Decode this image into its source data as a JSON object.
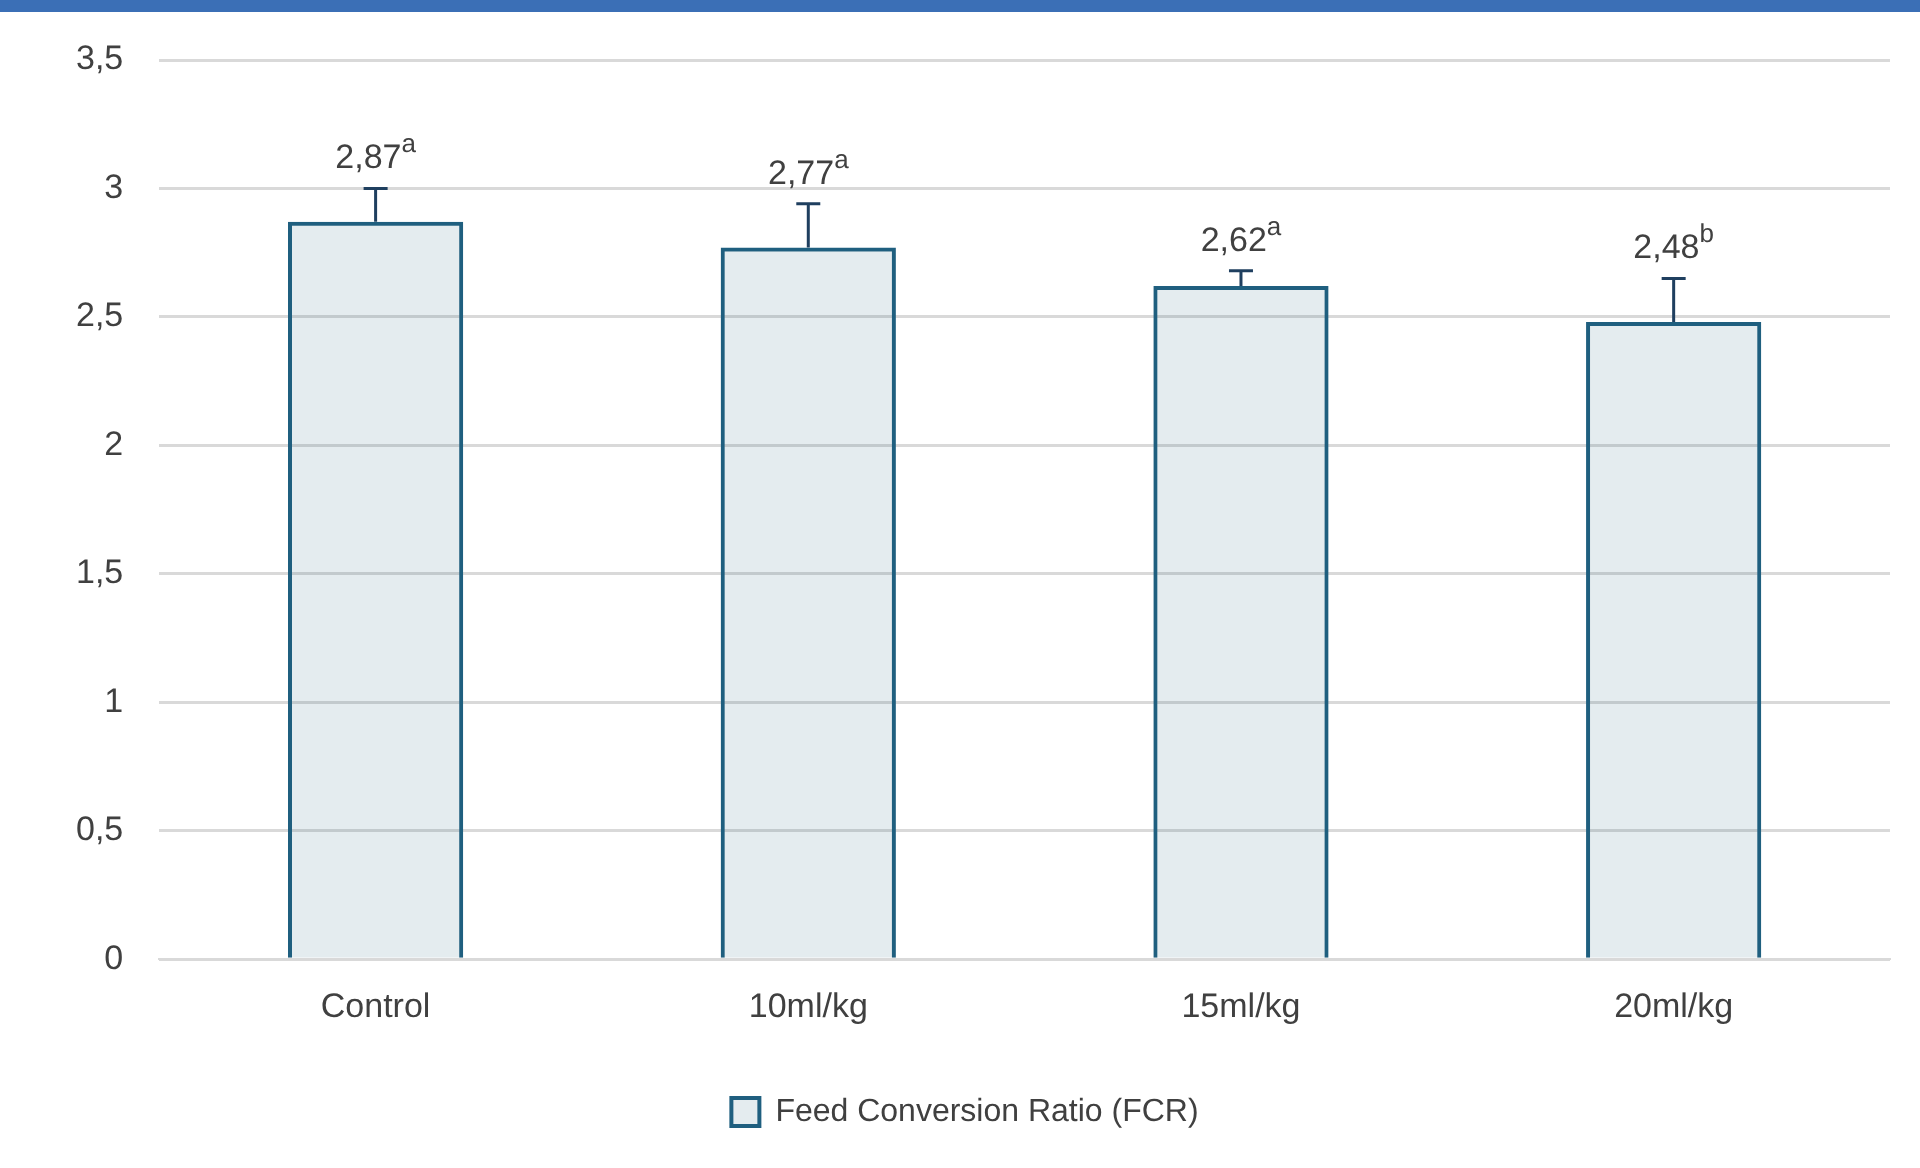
{
  "chart_data": {
    "type": "bar",
    "categories": [
      "Control",
      "10ml/kg",
      "15ml/kg",
      "20ml/kg"
    ],
    "series": [
      {
        "name": "Feed Conversion Ratio (FCR)",
        "color": "#1f5f7f",
        "values": [
          2.87,
          2.77,
          2.62,
          2.48
        ],
        "errors": [
          [
            2.87,
            3.0
          ],
          [
            2.77,
            2.94
          ],
          [
            2.62,
            2.68
          ],
          [
            2.48,
            2.65
          ]
        ],
        "value_labels": [
          "2,87$^{a}$",
          "2,77$^{a}$",
          "2,62$^{a}$",
          "2,48$^{b}$"
        ]
      }
    ],
    "ylim": [
      0,
      3.5
    ],
    "yticks": [
      0,
      {
        "value": 0.5,
        "label": "0,5"
      },
      1,
      {
        "value": 1.5,
        "label": "1,5"
      },
      2,
      {
        "value": 2.5,
        "label": "2,5"
      },
      3,
      {
        "value": 3.5,
        "label": "3,5"
      }
    ],
    "grid": "y",
    "legend": "bottom"
  }
}
